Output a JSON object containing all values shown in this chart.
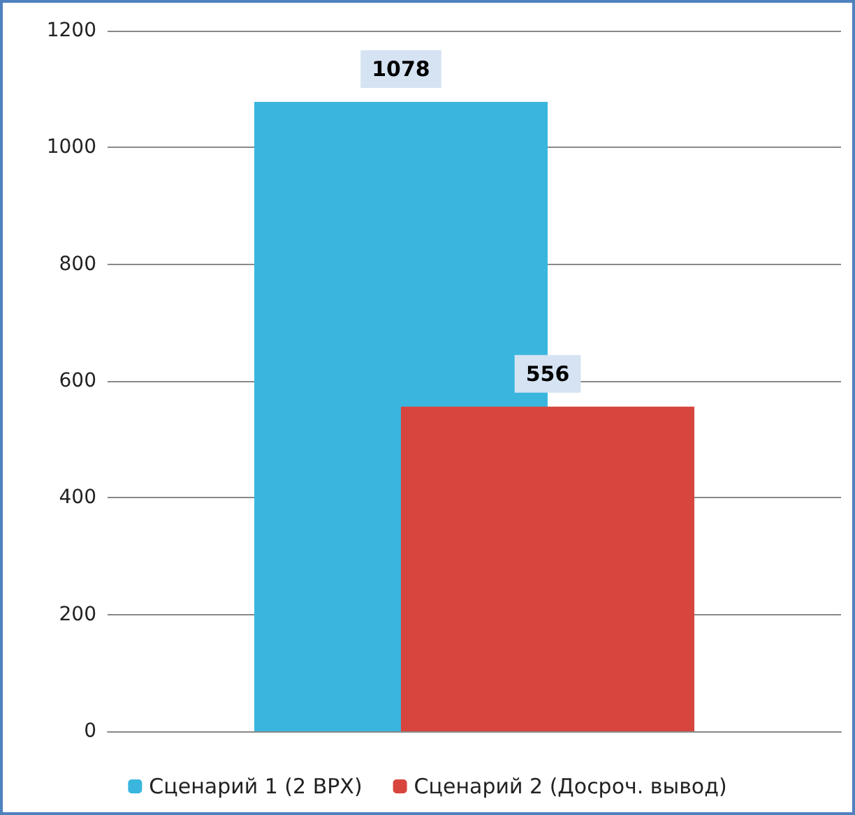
{
  "chart_data": {
    "type": "bar",
    "categories": [
      null
    ],
    "series": [
      {
        "name": "Сценарий 1 (2 ВРХ)",
        "color": "#3ab6de",
        "values": [
          1078
        ]
      },
      {
        "name": "Сценарий 2 (Досроч. вывод)",
        "color": "#d8453f",
        "values": [
          556
        ]
      }
    ],
    "ylim": [
      0,
      1200
    ],
    "yticks": [
      0,
      200,
      400,
      600,
      800,
      1000,
      1200
    ],
    "grid": "y",
    "legend": "bottom",
    "data_labels": true
  }
}
